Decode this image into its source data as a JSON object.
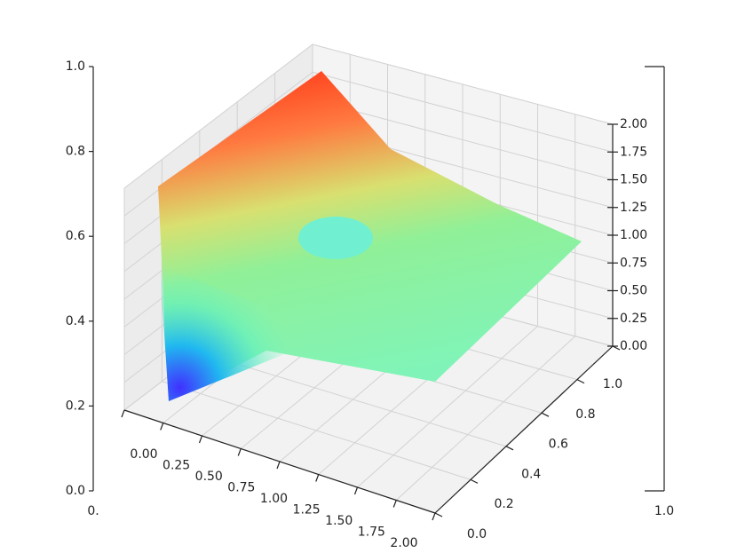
{
  "chart_data": {
    "type": "surface3d",
    "colormap": "rainbow",
    "xlim": [
      0,
      1
    ],
    "xticks": [
      {
        "value": 0,
        "label": "0."
      },
      {
        "value": 1,
        "label": "1.0"
      }
    ],
    "ylim": [
      0,
      1
    ],
    "yticks": [
      {
        "value": 0,
        "label": "0.0"
      },
      {
        "value": 0.2,
        "label": "0.2"
      },
      {
        "value": 0.4,
        "label": "0.4"
      },
      {
        "value": 0.6,
        "label": "0.6"
      },
      {
        "value": 0.8,
        "label": "0.8"
      },
      {
        "value": 1,
        "label": "1.0"
      }
    ],
    "axes3d": {
      "grid": true,
      "xlim": [
        0,
        2
      ],
      "xticks": [
        {
          "value": 0,
          "label": "0.00"
        },
        {
          "value": 0.25,
          "label": "0.25"
        },
        {
          "value": 0.5,
          "label": "0.50"
        },
        {
          "value": 0.75,
          "label": "0.75"
        },
        {
          "value": 1,
          "label": "1.00"
        },
        {
          "value": 1.25,
          "label": "1.25"
        },
        {
          "value": 1.5,
          "label": "1.50"
        },
        {
          "value": 1.75,
          "label": "1.75"
        },
        {
          "value": 2,
          "label": "2.00"
        }
      ],
      "ylim": [
        0,
        1
      ],
      "yticks": [
        {
          "value": 0,
          "label": "0.0"
        },
        {
          "value": 0.2,
          "label": "0.2"
        },
        {
          "value": 0.4,
          "label": "0.4"
        },
        {
          "value": 0.6,
          "label": "0.6"
        },
        {
          "value": 0.8,
          "label": "0.8"
        },
        {
          "value": 1,
          "label": "1.0"
        }
      ],
      "zlim": [
        0,
        2
      ],
      "zticks": [
        {
          "value": 0,
          "label": "0.00"
        },
        {
          "value": 0.25,
          "label": "0.25"
        },
        {
          "value": 0.5,
          "label": "0.50"
        },
        {
          "value": 0.75,
          "label": "0.75"
        },
        {
          "value": 1,
          "label": "1.00"
        },
        {
          "value": 1.25,
          "label": "1.25"
        },
        {
          "value": 1.5,
          "label": "1.50"
        },
        {
          "value": 1.75,
          "label": "1.75"
        },
        {
          "value": 2,
          "label": "2.00"
        }
      ]
    }
  }
}
